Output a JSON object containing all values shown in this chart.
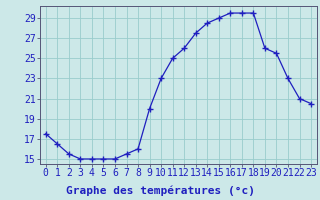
{
  "hours": [
    0,
    1,
    2,
    3,
    4,
    5,
    6,
    7,
    8,
    9,
    10,
    11,
    12,
    13,
    14,
    15,
    16,
    17,
    18,
    19,
    20,
    21,
    22,
    23
  ],
  "temperatures": [
    17.5,
    16.5,
    15.5,
    15.0,
    15.0,
    15.0,
    15.0,
    15.5,
    16.0,
    20.0,
    23.0,
    25.0,
    26.0,
    27.5,
    28.5,
    29.0,
    29.5,
    29.5,
    29.5,
    26.0,
    25.5,
    23.0,
    21.0,
    20.5
  ],
  "line_color": "#1f1fbf",
  "marker": "+",
  "marker_size": 4,
  "bg_color": "#cce8e8",
  "grid_color": "#99cccc",
  "xlabel": "Graphe des températures (°c)",
  "xlabel_fontsize": 8,
  "ylabel_ticks": [
    15,
    17,
    19,
    21,
    23,
    25,
    27,
    29
  ],
  "xlim": [
    -0.5,
    23.5
  ],
  "ylim": [
    14.5,
    30.2
  ],
  "tick_fontsize": 7,
  "spine_color": "#555577"
}
